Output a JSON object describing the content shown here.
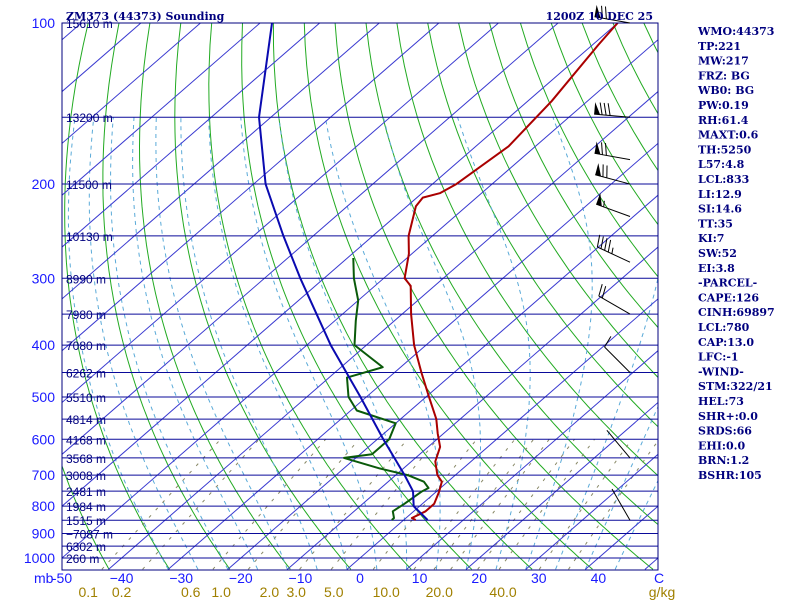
{
  "header": {
    "title": "ZM373 (44373) Sounding",
    "time": "1200Z 10 DEC 25"
  },
  "colors": {
    "isobar": "#0a0a9a",
    "isotherm": "#3a3ad0",
    "dry_adiabat": "#22aa22",
    "moist_adiabat": "#5aaad8",
    "mixing_ratio": "#888866",
    "temperature": "#aa0000",
    "dewpoint": "#0a5a0a",
    "parcel": "#0a0ab0",
    "wind": "#000000"
  },
  "chart_data": {
    "type": "line",
    "chart_kind": "skew-t log-p",
    "x_axis": {
      "units": "°C",
      "range": [
        -50,
        50
      ],
      "ticks": [
        -50,
        -40,
        -30,
        -20,
        -10,
        0,
        10,
        20,
        30,
        40
      ],
      "tick_labels": [
        "-50",
        "−40",
        "−30",
        "−20",
        "−10",
        "0",
        "10",
        "20",
        "30",
        "40"
      ],
      "unit_label": "C"
    },
    "y_axis": {
      "units": "mb",
      "scale": "log",
      "range": [
        1000,
        100
      ],
      "ticks": [
        100,
        200,
        300,
        400,
        500,
        600,
        700,
        800,
        900,
        1000
      ],
      "unit_label": "mb"
    },
    "mixing_ratio_labels": {
      "values": [
        "0.1",
        "0.2",
        "0.6",
        "1.0",
        "2.0",
        "3.0",
        "5.0",
        "10.0",
        "20.0",
        "40.0"
      ],
      "at_temp_1000mb": [
        -45.6,
        -40.0,
        -28.4,
        -23.3,
        -15.2,
        -10.7,
        -4.4,
        4.4,
        13.3,
        24.0
      ],
      "unit": "g/kg"
    },
    "height_labels": [
      {
        "p": 100,
        "text": "15610 m"
      },
      {
        "p": 150,
        "text": "13200 m"
      },
      {
        "p": 200,
        "text": "11500 m"
      },
      {
        "p": 250,
        "text": "10130 m"
      },
      {
        "p": 300,
        "text": "8990 m"
      },
      {
        "p": 350,
        "text": "7980 m"
      },
      {
        "p": 400,
        "text": "7080 m"
      },
      {
        "p": 450,
        "text": "6262 m"
      },
      {
        "p": 500,
        "text": "5510 m"
      },
      {
        "p": 550,
        "text": "4814 m"
      },
      {
        "p": 600,
        "text": "4168 m"
      },
      {
        "p": 650,
        "text": "3568 m"
      },
      {
        "p": 700,
        "text": "3008 m"
      },
      {
        "p": 750,
        "text": "2481 m"
      },
      {
        "p": 800,
        "text": "1984 m"
      },
      {
        "p": 850,
        "text": "1515 m"
      },
      {
        "p": 900,
        "text": "−7087 m"
      },
      {
        "p": 950,
        "text": "6302 m"
      },
      {
        "p": 1000,
        "text": "260 m"
      }
    ],
    "series": [
      {
        "name": "temperature",
        "points": [
          {
            "p": 849,
            "t": 2.0
          },
          {
            "p": 842,
            "t": 1.0
          },
          {
            "p": 818,
            "t": 2.0
          },
          {
            "p": 792,
            "t": 2.0
          },
          {
            "p": 752,
            "t": 0.5
          },
          {
            "p": 720,
            "t": -1.0
          },
          {
            "p": 700,
            "t": -3.0
          },
          {
            "p": 660,
            "t": -6.0
          },
          {
            "p": 620,
            "t": -8.0
          },
          {
            "p": 585,
            "t": -11.0
          },
          {
            "p": 550,
            "t": -14.0
          },
          {
            "p": 500,
            "t": -19.5
          },
          {
            "p": 450,
            "t": -25.5
          },
          {
            "p": 400,
            "t": -32.0
          },
          {
            "p": 350,
            "t": -38.5
          },
          {
            "p": 310,
            "t": -44.0
          },
          {
            "p": 300,
            "t": -46.5
          },
          {
            "p": 270,
            "t": -50.5
          },
          {
            "p": 250,
            "t": -54.0
          },
          {
            "p": 220,
            "t": -58.5
          },
          {
            "p": 212,
            "t": -59.0
          },
          {
            "p": 208,
            "t": -57.0
          },
          {
            "p": 200,
            "t": -56.0
          },
          {
            "p": 170,
            "t": -54.5
          },
          {
            "p": 140,
            "t": -56.0
          },
          {
            "p": 110,
            "t": -59.0
          },
          {
            "p": 100,
            "t": -60.0
          }
        ]
      },
      {
        "name": "dewpoint",
        "points": [
          {
            "p": 849,
            "t": -2.0
          },
          {
            "p": 842,
            "t": -2.0
          },
          {
            "p": 818,
            "t": -3.5
          },
          {
            "p": 792,
            "t": -3.0
          },
          {
            "p": 752,
            "t": -2.5
          },
          {
            "p": 740,
            "t": -2.0
          },
          {
            "p": 720,
            "t": -4.0
          },
          {
            "p": 700,
            "t": -8.0
          },
          {
            "p": 680,
            "t": -14.0
          },
          {
            "p": 650,
            "t": -22.0
          },
          {
            "p": 640,
            "t": -18.0
          },
          {
            "p": 600,
            "t": -18.0
          },
          {
            "p": 560,
            "t": -20.0
          },
          {
            "p": 530,
            "t": -29.0
          },
          {
            "p": 500,
            "t": -33.0
          },
          {
            "p": 460,
            "t": -37.0
          },
          {
            "p": 440,
            "t": -33.0
          },
          {
            "p": 400,
            "t": -42.0
          },
          {
            "p": 360,
            "t": -46.5
          },
          {
            "p": 330,
            "t": -50.0
          },
          {
            "p": 300,
            "t": -55.0
          },
          {
            "p": 275,
            "t": -59.0
          }
        ]
      },
      {
        "name": "parcel",
        "points": [
          {
            "p": 849,
            "t": 4.0
          },
          {
            "p": 800,
            "t": -1.0
          },
          {
            "p": 750,
            "t": -4.0
          },
          {
            "p": 700,
            "t": -8.5
          },
          {
            "p": 600,
            "t": -19.0
          },
          {
            "p": 500,
            "t": -31.0
          },
          {
            "p": 400,
            "t": -46.0
          },
          {
            "p": 300,
            "t": -64.0
          },
          {
            "p": 250,
            "t": -75.0
          },
          {
            "p": 200,
            "t": -88.0
          },
          {
            "p": 150,
            "t": -102.0
          },
          {
            "p": 100,
            "t": -118.0
          }
        ]
      }
    ],
    "wind_barbs": [
      {
        "p": 100,
        "dir": 280,
        "spd": 75
      },
      {
        "p": 150,
        "dir": 275,
        "spd": 80
      },
      {
        "p": 180,
        "dir": 280,
        "spd": 70
      },
      {
        "p": 200,
        "dir": 285,
        "spd": 70
      },
      {
        "p": 230,
        "dir": 290,
        "spd": 55
      },
      {
        "p": 280,
        "dir": 295,
        "spd": 45
      },
      {
        "p": 350,
        "dir": 300,
        "spd": 20
      },
      {
        "p": 450,
        "dir": 315,
        "spd": 10
      },
      {
        "p": 650,
        "dir": 320,
        "spd": 0
      },
      {
        "p": 850,
        "dir": 330,
        "spd": 0
      }
    ]
  },
  "indices": [
    "WMO:44373",
    "TP:221",
    "MW:217",
    "FRZ: BG",
    "WB0: BG",
    "PW:0.19",
    "RH:61.4",
    "MAXT:0.6",
    "TH:5250",
    "L57:4.8",
    "LCL:833",
    "LI:12.9",
    "SI:14.6",
    "TT:35",
    "KI:7",
    "SW:52",
    "EI:3.8",
    "-PARCEL-",
    "CAPE:126",
    "CINH:69897",
    "LCL:780",
    "CAP:13.0",
    "LFC:-1",
    "-WIND-",
    "STM:322/21",
    "HEL:73",
    "SHR+:0.0",
    "SRDS:66",
    "EHI:0.0",
    "BRN:1.2",
    "BSHR:105"
  ]
}
